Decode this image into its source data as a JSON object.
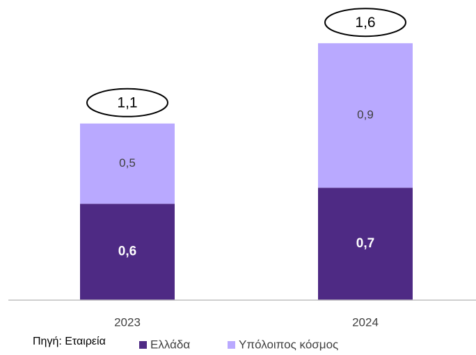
{
  "chart_data": {
    "type": "stacked_bar",
    "categories": [
      "2023",
      "2024"
    ],
    "series": [
      {
        "name": "Ελλάδα",
        "color": "#4e2a84",
        "values": [
          0.6,
          0.7
        ],
        "value_labels": [
          "0,6",
          "0,7"
        ]
      },
      {
        "name": "Υπόλοιπος κόσμος",
        "color": "#b9a9ff",
        "values": [
          0.5,
          0.9
        ],
        "value_labels": [
          "0,5",
          "0,9"
        ]
      }
    ],
    "totals": {
      "values": [
        1.1,
        1.6
      ],
      "value_labels": [
        "1,1",
        "1,6"
      ]
    },
    "ylim": [
      0,
      1.8
    ],
    "source": "Πηγή: Εταιρεία"
  }
}
